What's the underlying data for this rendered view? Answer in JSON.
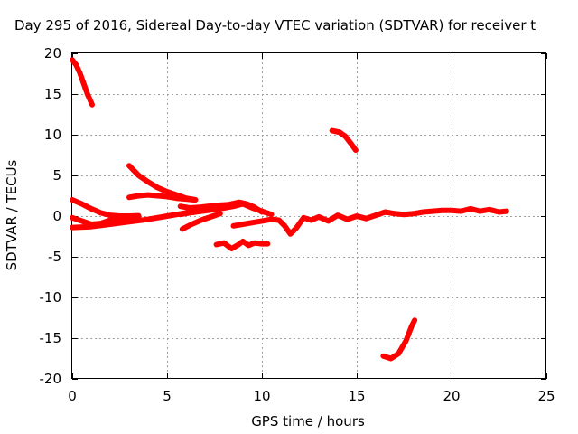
{
  "chart_data": {
    "type": "scatter",
    "title": "Day 295 of 2016, Sidereal Day-to-day VTEC variation (SDTVAR) for receiver t",
    "xlabel": "GPS time / hours",
    "ylabel": "SDTVAR / TECUs",
    "xlim": [
      0,
      25
    ],
    "ylim": [
      -20,
      20
    ],
    "xticks": [
      "0",
      "5",
      "10",
      "15",
      "20",
      "25"
    ],
    "yticks": [
      "-20",
      "-15",
      "-10",
      "-5",
      "0",
      "5",
      "10",
      "15",
      "20"
    ],
    "grid": true,
    "legend": "none",
    "series": [
      {
        "color": "#ff0000",
        "points": [
          [
            0.0,
            19.2
          ],
          [
            0.2,
            18.6
          ],
          [
            0.4,
            17.6
          ],
          [
            0.6,
            16.3
          ],
          [
            0.8,
            15.0
          ],
          [
            1.05,
            13.7
          ]
        ]
      },
      {
        "color": "#ff0000",
        "points": [
          [
            13.7,
            10.5
          ],
          [
            14.1,
            10.3
          ],
          [
            14.4,
            9.8
          ],
          [
            14.7,
            8.9
          ],
          [
            14.95,
            8.1
          ]
        ]
      },
      {
        "color": "#ff0000",
        "points": [
          [
            16.4,
            -17.2
          ],
          [
            16.8,
            -17.5
          ],
          [
            17.2,
            -16.9
          ],
          [
            17.6,
            -15.3
          ],
          [
            17.9,
            -13.5
          ],
          [
            18.05,
            -12.8
          ]
        ]
      },
      {
        "color": "#ff0000",
        "points": [
          [
            3.0,
            6.2
          ],
          [
            3.5,
            5.0
          ],
          [
            4.0,
            4.2
          ],
          [
            4.5,
            3.5
          ],
          [
            5.0,
            3.0
          ],
          [
            5.5,
            2.6
          ],
          [
            6.0,
            2.2
          ],
          [
            6.5,
            2.0
          ]
        ]
      },
      {
        "color": "#ff0000",
        "points": [
          [
            3.0,
            2.3
          ],
          [
            3.5,
            2.5
          ],
          [
            4.0,
            2.6
          ],
          [
            4.5,
            2.5
          ],
          [
            5.0,
            2.4
          ],
          [
            5.5,
            2.2
          ],
          [
            6.0,
            2.1
          ],
          [
            6.4,
            2.0
          ]
        ]
      },
      {
        "color": "#ff0000",
        "points": [
          [
            0.0,
            2.0
          ],
          [
            0.5,
            1.5
          ],
          [
            1.0,
            0.9
          ],
          [
            1.5,
            0.4
          ],
          [
            2.0,
            0.1
          ],
          [
            2.5,
            0.0
          ],
          [
            3.0,
            0.0
          ],
          [
            3.5,
            0.05
          ]
        ]
      },
      {
        "color": "#ff0000",
        "points": [
          [
            0.0,
            -0.2
          ],
          [
            0.5,
            -0.6
          ],
          [
            1.0,
            -1.0
          ],
          [
            1.5,
            -0.9
          ],
          [
            2.0,
            -0.5
          ],
          [
            2.5,
            -0.3
          ],
          [
            3.0,
            -0.2
          ],
          [
            3.5,
            -0.1
          ]
        ]
      },
      {
        "color": "#ff0000",
        "points": [
          [
            0.0,
            -1.4
          ],
          [
            1.0,
            -1.3
          ],
          [
            2.0,
            -1.0
          ],
          [
            3.0,
            -0.7
          ],
          [
            4.0,
            -0.4
          ],
          [
            5.0,
            0.0
          ],
          [
            6.0,
            0.4
          ],
          [
            7.0,
            0.8
          ],
          [
            8.0,
            1.0
          ],
          [
            8.5,
            1.2
          ],
          [
            9.0,
            1.5
          ],
          [
            9.5,
            1.0
          ],
          [
            10.0,
            0.6
          ],
          [
            10.5,
            0.2
          ]
        ]
      },
      {
        "color": "#ff0000",
        "points": [
          [
            5.7,
            1.2
          ],
          [
            6.2,
            1.0
          ],
          [
            6.8,
            1.1
          ],
          [
            7.5,
            1.3
          ],
          [
            8.2,
            1.4
          ],
          [
            8.8,
            1.7
          ],
          [
            9.2,
            1.5
          ],
          [
            9.6,
            1.1
          ],
          [
            10.0,
            0.5
          ]
        ]
      },
      {
        "color": "#ff0000",
        "points": [
          [
            5.7,
            0.2
          ],
          [
            6.2,
            0.4
          ],
          [
            6.8,
            0.6
          ],
          [
            7.5,
            0.8
          ],
          [
            8.0,
            1.0
          ]
        ]
      },
      {
        "color": "#ff0000",
        "points": [
          [
            5.8,
            -1.6
          ],
          [
            6.3,
            -1.0
          ],
          [
            6.8,
            -0.5
          ],
          [
            7.3,
            -0.1
          ],
          [
            7.8,
            0.3
          ]
        ]
      },
      {
        "color": "#ff0000",
        "points": [
          [
            8.5,
            -1.2
          ],
          [
            9.0,
            -1.0
          ],
          [
            9.5,
            -0.8
          ],
          [
            10.0,
            -0.6
          ],
          [
            10.5,
            -0.4
          ],
          [
            10.9,
            -0.5
          ],
          [
            11.2,
            -1.2
          ],
          [
            11.5,
            -2.2
          ],
          [
            11.8,
            -1.5
          ],
          [
            12.2,
            -0.2
          ],
          [
            12.6,
            -0.5
          ],
          [
            13.0,
            -0.1
          ],
          [
            13.5,
            -0.6
          ],
          [
            14.0,
            0.1
          ],
          [
            14.5,
            -0.4
          ],
          [
            15.0,
            0.0
          ],
          [
            15.5,
            -0.3
          ],
          [
            16.0,
            0.1
          ],
          [
            16.5,
            0.5
          ],
          [
            17.0,
            0.3
          ],
          [
            17.5,
            0.2
          ],
          [
            18.0,
            0.3
          ],
          [
            18.5,
            0.5
          ],
          [
            19.0,
            0.6
          ],
          [
            19.5,
            0.7
          ],
          [
            20.0,
            0.7
          ],
          [
            20.5,
            0.6
          ],
          [
            21.0,
            0.9
          ],
          [
            21.5,
            0.6
          ],
          [
            22.0,
            0.8
          ],
          [
            22.5,
            0.5
          ],
          [
            22.9,
            0.6
          ]
        ]
      },
      {
        "color": "#ff0000",
        "points": [
          [
            7.6,
            -3.5
          ],
          [
            8.0,
            -3.3
          ],
          [
            8.4,
            -4.0
          ],
          [
            8.7,
            -3.6
          ],
          [
            9.0,
            -3.1
          ],
          [
            9.3,
            -3.6
          ],
          [
            9.6,
            -3.3
          ],
          [
            10.0,
            -3.4
          ],
          [
            10.3,
            -3.4
          ]
        ]
      }
    ]
  }
}
